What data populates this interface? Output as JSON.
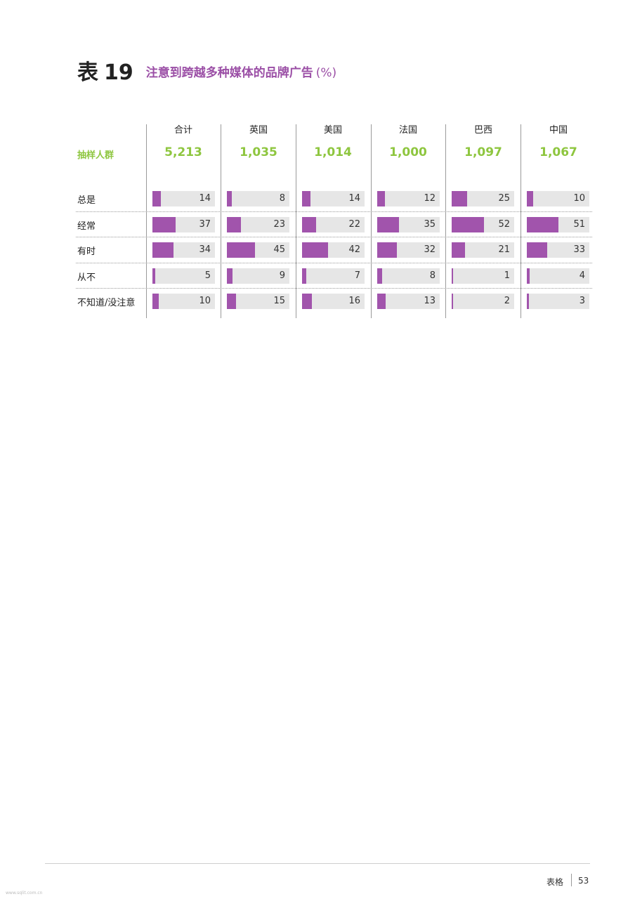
{
  "header": {
    "table_label": "表",
    "table_number": "19",
    "title": "注意到跨越多种媒体的品牌广告",
    "unit": "(%)"
  },
  "chart_data": {
    "type": "table",
    "title": "注意到跨越多种媒体的品牌广告",
    "unit": "(%)",
    "columns": [
      "合计",
      "英国",
      "美国",
      "法国",
      "巴西",
      "中国"
    ],
    "sample_label": "抽样人群",
    "sample_sizes": [
      "5,213",
      "1,035",
      "1,014",
      "1,000",
      "1,097",
      "1,067"
    ],
    "rows": [
      {
        "label": "总是",
        "values": [
          14,
          8,
          14,
          12,
          25,
          10
        ]
      },
      {
        "label": "经常",
        "values": [
          37,
          23,
          22,
          35,
          52,
          51
        ]
      },
      {
        "label": "有时",
        "values": [
          34,
          45,
          42,
          32,
          21,
          33
        ]
      },
      {
        "label": "从不",
        "values": [
          5,
          9,
          7,
          8,
          1,
          4
        ]
      },
      {
        "label": "不知道/没注意",
        "values": [
          10,
          15,
          16,
          13,
          2,
          3
        ]
      }
    ],
    "bar_max": 100,
    "colors": {
      "bar": "#a154ac",
      "track": "#e6e6e6",
      "title": "#9b4fa6",
      "sample": "#8ec63f"
    }
  },
  "footer": {
    "section": "表格",
    "page": "53"
  },
  "watermark": "www.sqlit.com.cn"
}
